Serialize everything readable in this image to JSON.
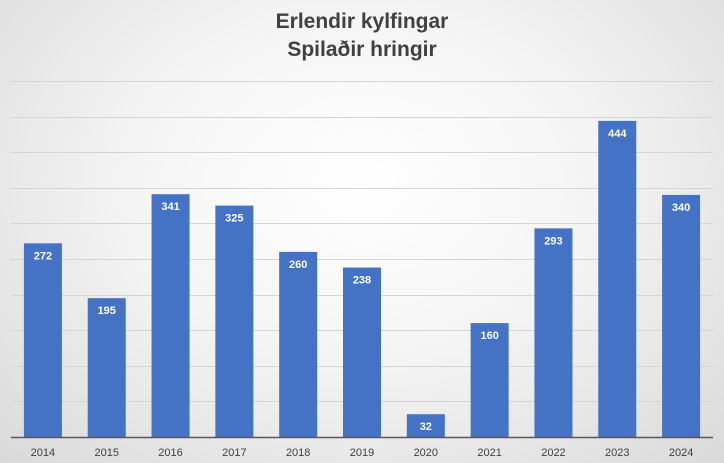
{
  "chart_data": {
    "type": "bar",
    "title": "Erlendir kylfingar",
    "subtitle": "Spilaðir hringir",
    "categories": [
      "2014",
      "2015",
      "2016",
      "2017",
      "2018",
      "2019",
      "2020",
      "2021",
      "2022",
      "2023",
      "2024"
    ],
    "series": [
      {
        "values": [
          272,
          195,
          341,
          325,
          260,
          238,
          32,
          160,
          293,
          444,
          340
        ]
      }
    ],
    "data_labels": [
      "272",
      "195",
      "341",
      "325",
      "260",
      "238",
      "32",
      "160",
      "293",
      "444",
      "340"
    ],
    "ylim": [
      0,
      500
    ],
    "y_gridline_step": 50,
    "grid": true,
    "legend": "none",
    "bar_color": "#4472C4",
    "data_label_color": "#ffffff"
  }
}
